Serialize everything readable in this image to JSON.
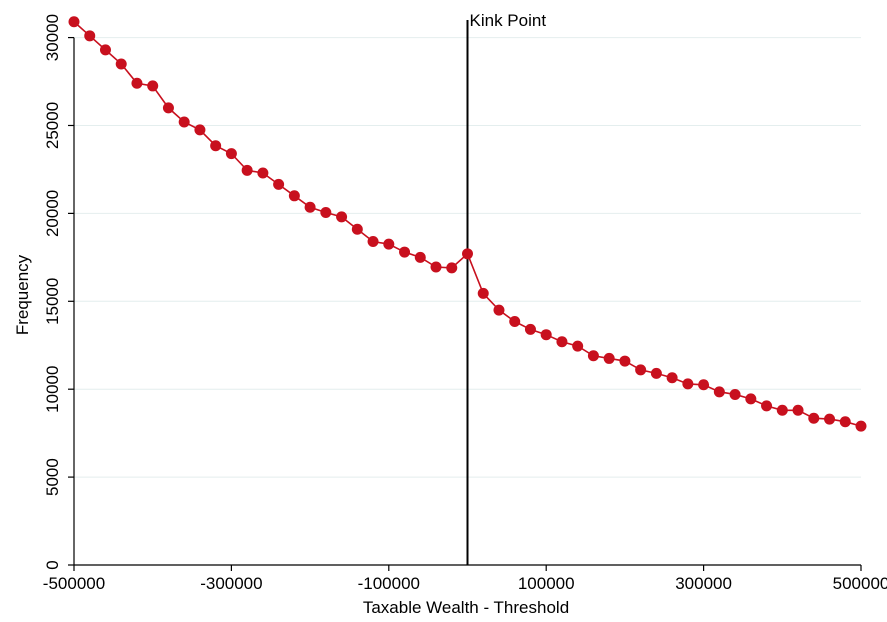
{
  "chart_data": {
    "type": "line",
    "xlabel": "Taxable Wealth - Threshold",
    "ylabel": "Frequency",
    "xlim": [
      -500000,
      500000
    ],
    "ylim": [
      0,
      31000
    ],
    "x_ticks": [
      -500000,
      -300000,
      -100000,
      100000,
      300000,
      500000
    ],
    "x_tick_labels": [
      "-500000",
      "-300000",
      "-100000",
      "100000",
      "300000",
      "500000"
    ],
    "y_ticks": [
      0,
      5000,
      10000,
      15000,
      20000,
      25000,
      30000
    ],
    "y_tick_labels": [
      "0",
      "5000",
      "10000",
      "15000",
      "20000",
      "25000",
      "30000"
    ],
    "grid": "horizontal",
    "marker_color": "#c8101e",
    "vline": {
      "x": 0,
      "label": "Kink Point",
      "color": "#000000"
    },
    "series": [
      {
        "x": [
          -500000,
          -480000,
          -460000,
          -440000,
          -420000,
          -400000,
          -380000,
          -360000,
          -340000,
          -320000,
          -300000,
          -280000,
          -260000,
          -240000,
          -220000,
          -200000,
          -180000,
          -160000,
          -140000,
          -120000,
          -100000,
          -80000,
          -60000,
          -40000,
          -20000,
          0,
          20000,
          40000,
          60000,
          80000,
          100000,
          120000,
          140000,
          160000,
          180000,
          200000,
          220000,
          240000,
          260000,
          280000,
          300000,
          320000,
          340000,
          360000,
          380000,
          400000,
          420000,
          440000,
          460000,
          480000,
          500000
        ],
        "y": [
          30900,
          30100,
          29300,
          28500,
          27400,
          27250,
          26000,
          25200,
          24750,
          23850,
          23400,
          22450,
          22300,
          21650,
          21000,
          20350,
          20050,
          19800,
          19100,
          18400,
          18250,
          17800,
          17500,
          16950,
          16900,
          17700,
          15450,
          14500,
          13850,
          13400,
          13100,
          12700,
          12450,
          11900,
          11750,
          11600,
          11100,
          10900,
          10650,
          10300,
          10250,
          9850,
          9700,
          9450,
          9050,
          8800,
          8800,
          8350,
          8300,
          8150,
          7900
        ]
      }
    ]
  }
}
